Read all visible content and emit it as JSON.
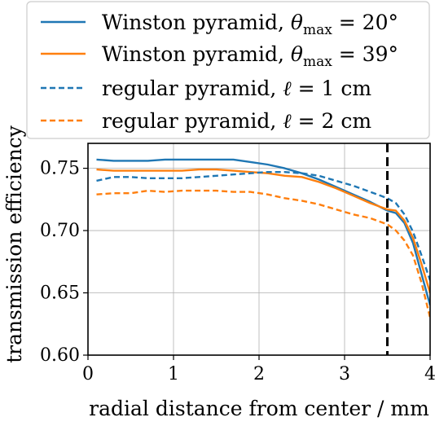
{
  "chart_data": {
    "type": "line",
    "title": "",
    "xlabel": "radial distance from center / mm",
    "ylabel": "transmission efficiency",
    "xlim": [
      0,
      4
    ],
    "ylim": [
      0.6,
      0.77
    ],
    "xticks": [
      "0",
      "1",
      "2",
      "3",
      "4"
    ],
    "yticks": [
      "0.60",
      "0.65",
      "0.70",
      "0.75"
    ],
    "grid": true,
    "legend_position": "top",
    "vline": {
      "x": 3.5,
      "style": "dashed",
      "color": "#000000"
    },
    "series": [
      {
        "name": "Winston pyramid, θmax = 20°",
        "name_main": "Winston pyramid, ",
        "name_math": "θ",
        "name_sub": "max",
        "name_rest": " = 20°",
        "color": "#1f77b4",
        "style": "solid",
        "x": [
          0.1,
          0.3,
          0.5,
          0.7,
          0.9,
          1.1,
          1.3,
          1.5,
          1.7,
          1.9,
          2.1,
          2.3,
          2.5,
          2.7,
          2.9,
          3.1,
          3.3,
          3.5,
          3.6,
          3.7,
          3.8,
          3.9,
          4.0
        ],
        "y": [
          0.757,
          0.756,
          0.756,
          0.756,
          0.757,
          0.757,
          0.757,
          0.757,
          0.757,
          0.755,
          0.753,
          0.75,
          0.746,
          0.741,
          0.735,
          0.729,
          0.723,
          0.716,
          0.714,
          0.706,
          0.69,
          0.665,
          0.64
        ]
      },
      {
        "name": "Winston pyramid, θmax = 39°",
        "name_main": "Winston pyramid, ",
        "name_math": "θ",
        "name_sub": "max",
        "name_rest": " = 39°",
        "color": "#ff7f0e",
        "style": "solid",
        "x": [
          0.1,
          0.3,
          0.5,
          0.7,
          0.9,
          1.1,
          1.3,
          1.5,
          1.7,
          1.9,
          2.1,
          2.3,
          2.5,
          2.7,
          2.9,
          3.1,
          3.3,
          3.5,
          3.6,
          3.7,
          3.8,
          3.9,
          4.0
        ],
        "y": [
          0.749,
          0.748,
          0.748,
          0.748,
          0.748,
          0.748,
          0.749,
          0.749,
          0.748,
          0.747,
          0.746,
          0.744,
          0.743,
          0.739,
          0.734,
          0.728,
          0.722,
          0.717,
          0.716,
          0.708,
          0.694,
          0.673,
          0.65
        ]
      },
      {
        "name": "regular pyramid, ℓ = 1 cm",
        "name_main": "regular pyramid, ",
        "name_math": "ℓ",
        "name_sub": "",
        "name_rest": " = 1 cm",
        "color": "#1f77b4",
        "style": "dashed",
        "x": [
          0.1,
          0.3,
          0.5,
          0.7,
          0.9,
          1.1,
          1.3,
          1.5,
          1.7,
          1.9,
          2.1,
          2.3,
          2.5,
          2.7,
          2.9,
          3.1,
          3.3,
          3.5,
          3.6,
          3.7,
          3.8,
          3.9,
          4.0
        ],
        "y": [
          0.74,
          0.743,
          0.743,
          0.742,
          0.742,
          0.742,
          0.743,
          0.744,
          0.745,
          0.746,
          0.747,
          0.747,
          0.746,
          0.744,
          0.74,
          0.736,
          0.731,
          0.726,
          0.722,
          0.713,
          0.699,
          0.68,
          0.66
        ]
      },
      {
        "name": "regular pyramid, ℓ = 2 cm",
        "name_main": "regular pyramid, ",
        "name_math": "ℓ",
        "name_sub": "",
        "name_rest": " = 2 cm",
        "color": "#ff7f0e",
        "style": "dashed",
        "x": [
          0.1,
          0.3,
          0.5,
          0.7,
          0.9,
          1.1,
          1.3,
          1.5,
          1.7,
          1.9,
          2.1,
          2.3,
          2.5,
          2.7,
          2.9,
          3.1,
          3.3,
          3.5,
          3.6,
          3.7,
          3.8,
          3.9,
          4.0
        ],
        "y": [
          0.729,
          0.73,
          0.73,
          0.732,
          0.731,
          0.732,
          0.732,
          0.732,
          0.731,
          0.731,
          0.729,
          0.726,
          0.724,
          0.721,
          0.717,
          0.713,
          0.71,
          0.705,
          0.7,
          0.692,
          0.68,
          0.658,
          0.63
        ]
      }
    ]
  }
}
